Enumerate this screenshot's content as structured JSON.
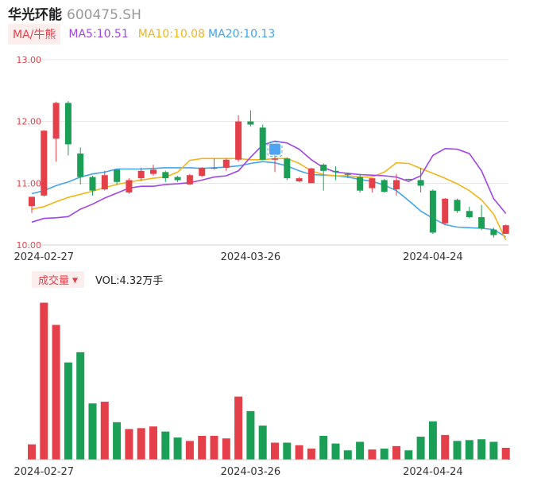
{
  "header": {
    "name": "华光环能",
    "code": "600475.SH"
  },
  "legend": {
    "tag": "MA/牛熊",
    "ma5": "MA5:10.51",
    "ma10": "MA10:10.08",
    "ma20": "MA20:10.13"
  },
  "volume_legend": {
    "tag": "成交量",
    "tag_arrow": "▼",
    "value": "VOL:4.32万手"
  },
  "colors": {
    "up": "#e5404a",
    "down": "#1b9e55",
    "ma5": "#a145e8",
    "ma10": "#f4b51a",
    "ma20": "#44a4ea",
    "grid": "#e6e6e6"
  },
  "chart_data": {
    "type": "candlestick",
    "y_ticks": [
      "13.00",
      "12.00",
      "11.00",
      "10.00"
    ],
    "ylim": [
      10.0,
      13.0
    ],
    "x_labels": [
      "2024-02-27",
      "2024-03-26",
      "2024-04-24"
    ],
    "x_label_index": [
      1,
      18,
      33
    ],
    "candles": [
      {
        "o": 10.63,
        "h": 10.78,
        "l": 10.52,
        "c": 10.78
      },
      {
        "o": 10.8,
        "h": 11.86,
        "l": 10.78,
        "c": 11.85
      },
      {
        "o": 11.72,
        "h": 12.32,
        "l": 11.35,
        "c": 12.3
      },
      {
        "o": 12.3,
        "h": 12.33,
        "l": 11.45,
        "c": 11.63
      },
      {
        "o": 11.48,
        "h": 11.58,
        "l": 10.98,
        "c": 11.1
      },
      {
        "o": 11.1,
        "h": 11.12,
        "l": 10.8,
        "c": 10.88
      },
      {
        "o": 10.9,
        "h": 11.2,
        "l": 10.88,
        "c": 11.13
      },
      {
        "o": 11.22,
        "h": 11.22,
        "l": 10.98,
        "c": 11.02
      },
      {
        "o": 10.85,
        "h": 11.08,
        "l": 10.83,
        "c": 11.05
      },
      {
        "o": 11.08,
        "h": 11.25,
        "l": 11.04,
        "c": 11.2
      },
      {
        "o": 11.15,
        "h": 11.3,
        "l": 11.12,
        "c": 11.22
      },
      {
        "o": 11.18,
        "h": 11.2,
        "l": 11.02,
        "c": 11.08
      },
      {
        "o": 11.1,
        "h": 11.12,
        "l": 11.02,
        "c": 11.05
      },
      {
        "o": 10.98,
        "h": 11.15,
        "l": 10.97,
        "c": 11.13
      },
      {
        "o": 11.12,
        "h": 11.26,
        "l": 11.1,
        "c": 11.25
      },
      {
        "o": 11.25,
        "h": 11.4,
        "l": 11.22,
        "c": 11.25
      },
      {
        "o": 11.25,
        "h": 11.4,
        "l": 11.2,
        "c": 11.38
      },
      {
        "o": 11.38,
        "h": 12.1,
        "l": 11.35,
        "c": 12.0
      },
      {
        "o": 12.0,
        "h": 12.18,
        "l": 11.92,
        "c": 11.95
      },
      {
        "o": 11.9,
        "h": 11.95,
        "l": 11.38,
        "c": 11.38
      },
      {
        "o": 11.38,
        "h": 11.45,
        "l": 11.18,
        "c": 11.4
      },
      {
        "o": 11.4,
        "h": 11.42,
        "l": 11.05,
        "c": 11.08
      },
      {
        "o": 11.03,
        "h": 11.1,
        "l": 11.02,
        "c": 11.08
      },
      {
        "o": 11.0,
        "h": 11.25,
        "l": 11.0,
        "c": 11.24
      },
      {
        "o": 11.3,
        "h": 11.32,
        "l": 10.88,
        "c": 11.2
      },
      {
        "o": 11.2,
        "h": 11.27,
        "l": 11.05,
        "c": 11.18
      },
      {
        "o": 11.15,
        "h": 11.17,
        "l": 11.08,
        "c": 11.14
      },
      {
        "o": 11.1,
        "h": 11.15,
        "l": 10.85,
        "c": 10.88
      },
      {
        "o": 10.92,
        "h": 11.08,
        "l": 10.85,
        "c": 11.08
      },
      {
        "o": 11.05,
        "h": 11.07,
        "l": 10.85,
        "c": 10.86
      },
      {
        "o": 10.9,
        "h": 11.15,
        "l": 10.8,
        "c": 11.05
      },
      {
        "o": 11.07,
        "h": 11.07,
        "l": 11.05,
        "c": 11.06
      },
      {
        "o": 11.05,
        "h": 11.25,
        "l": 10.85,
        "c": 10.96
      },
      {
        "o": 10.88,
        "h": 10.9,
        "l": 10.18,
        "c": 10.2
      },
      {
        "o": 10.35,
        "h": 10.76,
        "l": 10.33,
        "c": 10.75
      },
      {
        "o": 10.73,
        "h": 10.75,
        "l": 10.52,
        "c": 10.55
      },
      {
        "o": 10.55,
        "h": 10.62,
        "l": 10.43,
        "c": 10.45
      },
      {
        "o": 10.45,
        "h": 10.65,
        "l": 10.24,
        "c": 10.27
      },
      {
        "o": 10.25,
        "h": 10.28,
        "l": 10.12,
        "c": 10.16
      },
      {
        "o": 10.18,
        "h": 10.33,
        "l": 10.18,
        "c": 10.32
      }
    ],
    "volume": [
      0.9,
      9.2,
      7.9,
      5.7,
      6.3,
      3.3,
      3.4,
      2.2,
      1.8,
      1.85,
      1.95,
      1.65,
      1.3,
      1.1,
      1.4,
      1.4,
      1.25,
      3.7,
      2.85,
      2.0,
      1.0,
      1.0,
      0.85,
      0.65,
      1.4,
      0.95,
      0.55,
      1.05,
      0.6,
      0.65,
      0.8,
      0.55,
      1.35,
      2.25,
      1.45,
      1.1,
      1.15,
      1.2,
      1.05,
      0.7
    ],
    "ma5": [
      10.37,
      10.43,
      10.44,
      10.46,
      10.58,
      10.66,
      10.76,
      10.84,
      10.92,
      10.95,
      10.95,
      10.98,
      10.99,
      11.01,
      11.05,
      11.1,
      11.12,
      11.2,
      11.42,
      11.62,
      11.68,
      11.65,
      11.55,
      11.38,
      11.25,
      11.18,
      11.16,
      11.14,
      11.13,
      11.12,
      11.1,
      11.03,
      11.12,
      11.45,
      11.56,
      11.55,
      11.48,
      11.2,
      10.75,
      10.51
    ],
    "ma10": [
      10.58,
      10.62,
      10.7,
      10.77,
      10.82,
      10.87,
      10.93,
      10.98,
      11.02,
      11.05,
      11.08,
      11.1,
      11.18,
      11.37,
      11.4,
      11.4,
      11.4,
      11.4,
      11.38,
      11.38,
      11.4,
      11.4,
      11.32,
      11.2,
      11.14,
      11.12,
      11.12,
      11.1,
      11.1,
      11.18,
      11.33,
      11.32,
      11.24,
      11.16,
      11.08,
      10.99,
      10.88,
      10.73,
      10.5,
      10.08
    ],
    "ma20": [
      10.83,
      10.88,
      10.96,
      11.02,
      11.1,
      11.15,
      11.18,
      11.23,
      11.23,
      11.23,
      11.24,
      11.25,
      11.25,
      11.25,
      11.24,
      11.25,
      11.26,
      11.28,
      11.32,
      11.35,
      11.33,
      11.28,
      11.2,
      11.14,
      11.13,
      11.12,
      11.1,
      11.06,
      11.03,
      10.97,
      10.88,
      10.72,
      10.55,
      10.43,
      10.33,
      10.29,
      10.28,
      10.27,
      10.25,
      10.13
    ]
  }
}
